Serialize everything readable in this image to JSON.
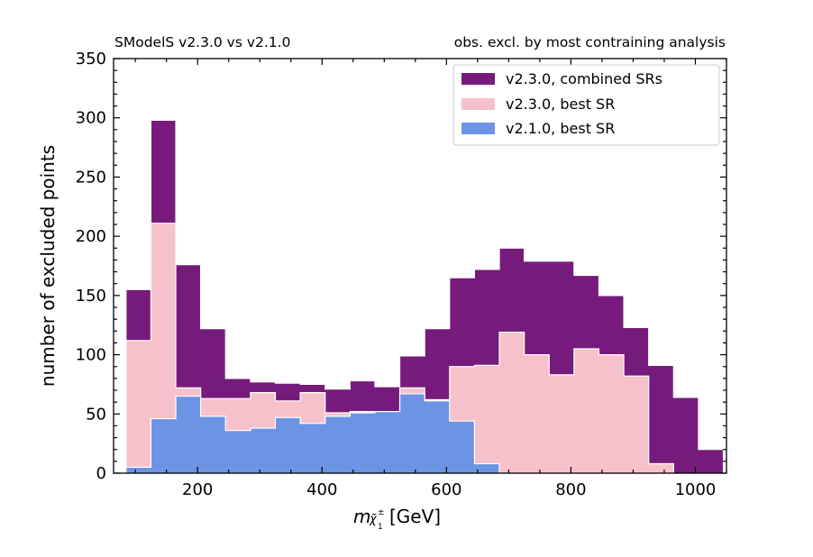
{
  "chart_data": {
    "type": "histogram",
    "title_left": "SModelS v2.3.0 vs v2.1.0",
    "title_right": "obs. excl. by most contraining analysis",
    "xlabel": {
      "symbol": "m",
      "sub_main": "χ̃",
      "sub_sup": "±",
      "sub_sub": "1",
      "unit": " [GeV]"
    },
    "ylabel": "number of excluded points",
    "xlim": [
      65,
      1050
    ],
    "ylim": [
      0,
      350
    ],
    "xticks": [
      200,
      400,
      600,
      800,
      1000
    ],
    "yticks": [
      0,
      50,
      100,
      150,
      200,
      250,
      300,
      350
    ],
    "bin_edges": [
      85,
      125,
      165,
      205,
      245,
      285,
      325,
      365,
      405,
      445,
      485,
      525,
      565,
      605,
      645,
      685,
      725,
      765,
      805,
      845,
      885,
      925,
      965,
      1005,
      1045
    ],
    "legend_position": "upper right",
    "series": [
      {
        "name": "v2.3.0, combined SRs",
        "color": "#761b7b",
        "values": [
          155,
          298,
          176,
          122,
          80,
          77,
          76,
          75,
          71,
          78,
          73,
          99,
          122,
          165,
          172,
          190,
          179,
          179,
          167,
          150,
          123,
          91,
          64,
          20
        ]
      },
      {
        "name": "v2.3.0, best SR",
        "color": "#f6c1ca",
        "values": [
          112,
          211,
          72,
          63,
          63,
          68,
          61,
          68,
          51,
          52,
          52,
          72,
          62,
          90,
          91,
          119,
          100,
          83,
          105,
          100,
          82,
          8,
          0,
          0
        ]
      },
      {
        "name": "v2.1.0, best SR",
        "color": "#6d93e4",
        "values": [
          5,
          46,
          65,
          48,
          36,
          38,
          47,
          42,
          48,
          51,
          52,
          67,
          61,
          44,
          8,
          0,
          0,
          0,
          0,
          0,
          0,
          0,
          0,
          0
        ]
      }
    ]
  }
}
